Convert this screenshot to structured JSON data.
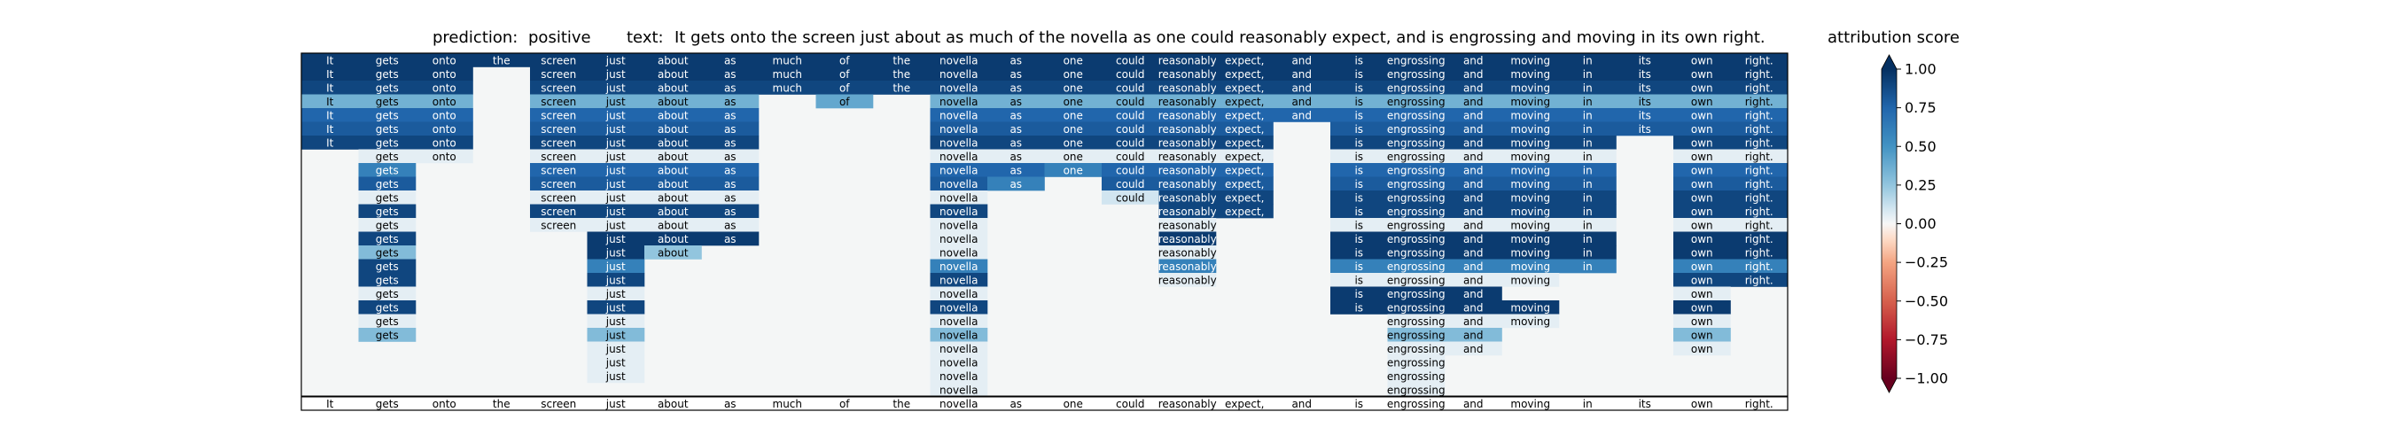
{
  "chart_data": {
    "type": "heatmap",
    "prediction_label": "prediction:",
    "prediction": "positive",
    "text_label": "text:",
    "text": "It gets onto the screen just about as much of the novella as one could reasonably expect, and is engrossing and moving in its own right.",
    "tokens": [
      "It",
      "gets",
      "onto",
      "the",
      "screen",
      "just",
      "about",
      "as",
      "much",
      "of",
      "the",
      "novella",
      "as",
      "one",
      "could",
      "reasonably",
      "expect,",
      "and",
      "is",
      "engrossing",
      "and",
      "moving",
      "in",
      "its",
      "own",
      "right."
    ],
    "colorbar": {
      "title": "attribution score",
      "range": [
        -1.0,
        1.0
      ],
      "ticks": [
        "1.00",
        "0.75",
        "0.50",
        "0.25",
        "0.00",
        "−0.25",
        "−0.50",
        "−0.75",
        "−1.00"
      ],
      "colormap": "RdBu",
      "extend": "both"
    },
    "attribution_rows": [
      [
        0.95,
        0.95,
        0.95,
        0.95,
        0.95,
        0.95,
        0.95,
        0.95,
        0.95,
        0.95,
        0.95,
        0.95,
        0.95,
        0.95,
        0.95,
        0.95,
        0.95,
        0.95,
        0.95,
        0.95,
        0.95,
        0.95,
        0.95,
        0.95,
        0.95,
        0.95
      ],
      [
        0.95,
        0.95,
        0.95,
        null,
        0.95,
        0.95,
        0.95,
        0.95,
        0.95,
        0.95,
        0.95,
        0.95,
        0.95,
        0.95,
        0.95,
        0.95,
        0.95,
        0.95,
        0.95,
        0.95,
        0.95,
        0.95,
        0.95,
        0.95,
        0.95,
        0.95
      ],
      [
        0.9,
        0.9,
        0.9,
        null,
        0.9,
        0.9,
        0.9,
        0.9,
        0.9,
        0.9,
        0.9,
        0.9,
        0.9,
        0.9,
        0.9,
        0.9,
        0.9,
        0.9,
        0.9,
        0.9,
        0.9,
        0.9,
        0.9,
        0.9,
        0.9,
        0.9
      ],
      [
        0.35,
        0.35,
        0.35,
        null,
        0.35,
        0.35,
        0.35,
        0.35,
        null,
        0.4,
        null,
        0.35,
        0.35,
        0.35,
        0.35,
        0.35,
        0.35,
        0.35,
        0.35,
        0.35,
        0.35,
        0.35,
        0.35,
        0.35,
        0.35,
        0.35
      ],
      [
        0.75,
        0.75,
        0.75,
        null,
        0.75,
        0.75,
        0.75,
        0.75,
        null,
        null,
        null,
        0.75,
        0.75,
        0.75,
        0.75,
        0.75,
        0.75,
        0.75,
        0.75,
        0.75,
        0.75,
        0.75,
        0.75,
        0.75,
        0.75,
        0.75
      ],
      [
        0.8,
        0.8,
        0.8,
        null,
        0.8,
        0.8,
        0.8,
        0.8,
        null,
        null,
        null,
        0.8,
        0.8,
        0.8,
        0.8,
        0.8,
        0.8,
        null,
        0.8,
        0.8,
        0.8,
        0.8,
        0.8,
        0.8,
        0.8,
        0.8
      ],
      [
        0.9,
        0.9,
        0.9,
        null,
        0.9,
        0.9,
        0.9,
        0.9,
        null,
        null,
        null,
        0.9,
        0.9,
        0.9,
        0.9,
        0.9,
        0.9,
        null,
        0.9,
        0.9,
        0.9,
        0.9,
        0.9,
        null,
        0.9,
        0.9
      ],
      [
        null,
        0.05,
        0.05,
        null,
        0.05,
        0.05,
        0.05,
        0.05,
        null,
        null,
        null,
        0.05,
        0.05,
        0.05,
        0.05,
        0.05,
        0.05,
        null,
        0.05,
        0.05,
        0.05,
        0.05,
        0.05,
        null,
        0.05,
        0.05
      ],
      [
        null,
        0.6,
        null,
        null,
        0.75,
        0.75,
        0.75,
        0.75,
        null,
        null,
        null,
        0.75,
        0.75,
        0.6,
        0.75,
        0.75,
        0.75,
        null,
        0.75,
        0.75,
        0.75,
        0.75,
        0.75,
        null,
        0.75,
        0.75
      ],
      [
        null,
        0.8,
        null,
        null,
        0.8,
        0.8,
        0.8,
        0.8,
        null,
        null,
        null,
        0.8,
        0.6,
        null,
        0.8,
        0.8,
        0.8,
        null,
        0.8,
        0.8,
        0.8,
        0.8,
        0.8,
        null,
        0.8,
        0.8
      ],
      [
        null,
        0.05,
        null,
        null,
        0.05,
        0.05,
        0.05,
        0.05,
        null,
        null,
        null,
        0.05,
        null,
        null,
        0.1,
        0.9,
        0.9,
        null,
        0.9,
        0.9,
        0.9,
        0.9,
        0.9,
        null,
        0.9,
        0.9
      ],
      [
        null,
        0.9,
        null,
        null,
        0.9,
        0.9,
        0.9,
        0.9,
        null,
        null,
        null,
        0.9,
        null,
        null,
        null,
        0.9,
        0.9,
        null,
        0.9,
        0.9,
        0.9,
        0.9,
        0.9,
        null,
        0.9,
        0.9
      ],
      [
        null,
        0.05,
        null,
        null,
        0.05,
        0.05,
        0.05,
        0.05,
        null,
        null,
        null,
        0.05,
        null,
        null,
        null,
        0.05,
        null,
        null,
        0.05,
        0.05,
        0.05,
        0.05,
        0.05,
        null,
        0.05,
        0.05
      ],
      [
        null,
        0.9,
        null,
        null,
        null,
        0.95,
        0.95,
        0.95,
        null,
        null,
        null,
        0.05,
        null,
        null,
        null,
        0.95,
        null,
        null,
        0.95,
        0.95,
        0.95,
        0.95,
        0.95,
        null,
        0.95,
        0.95
      ],
      [
        null,
        0.3,
        null,
        null,
        null,
        0.95,
        0.25,
        null,
        null,
        null,
        null,
        0.05,
        null,
        null,
        null,
        0.05,
        null,
        null,
        0.95,
        0.95,
        0.95,
        0.95,
        0.95,
        null,
        0.95,
        0.95
      ],
      [
        null,
        0.9,
        null,
        null,
        null,
        0.6,
        null,
        null,
        null,
        null,
        null,
        0.6,
        null,
        null,
        null,
        0.6,
        null,
        null,
        0.6,
        0.6,
        0.6,
        0.6,
        0.6,
        null,
        0.6,
        0.6
      ],
      [
        null,
        0.9,
        null,
        null,
        null,
        0.9,
        null,
        null,
        null,
        null,
        null,
        0.9,
        null,
        null,
        null,
        0.05,
        null,
        null,
        0.05,
        0.05,
        0.05,
        0.05,
        null,
        null,
        0.9,
        0.9
      ],
      [
        null,
        0.05,
        null,
        null,
        null,
        0.05,
        null,
        null,
        null,
        null,
        null,
        0.05,
        null,
        null,
        null,
        null,
        null,
        null,
        0.95,
        0.95,
        0.95,
        null,
        null,
        null,
        0.05,
        null
      ],
      [
        null,
        0.9,
        null,
        null,
        null,
        0.9,
        null,
        null,
        null,
        null,
        null,
        0.9,
        null,
        null,
        null,
        null,
        null,
        null,
        0.95,
        0.95,
        0.95,
        0.95,
        null,
        null,
        0.95,
        null
      ],
      [
        null,
        0.05,
        null,
        null,
        null,
        0.05,
        null,
        null,
        null,
        null,
        null,
        0.05,
        null,
        null,
        null,
        null,
        null,
        null,
        null,
        0.05,
        0.05,
        0.05,
        null,
        null,
        0.05,
        null
      ],
      [
        null,
        0.3,
        null,
        null,
        null,
        0.3,
        null,
        null,
        null,
        null,
        null,
        0.3,
        null,
        null,
        null,
        null,
        null,
        null,
        null,
        0.3,
        0.3,
        null,
        null,
        null,
        0.3,
        null
      ],
      [
        null,
        null,
        null,
        null,
        null,
        0.05,
        null,
        null,
        null,
        null,
        null,
        0.05,
        null,
        null,
        null,
        null,
        null,
        null,
        null,
        0.05,
        0.05,
        null,
        null,
        null,
        0.05,
        null
      ],
      [
        null,
        null,
        null,
        null,
        null,
        0.05,
        null,
        null,
        null,
        null,
        null,
        0.05,
        null,
        null,
        null,
        null,
        null,
        null,
        null,
        0.05,
        null,
        null,
        null,
        null,
        null,
        null
      ],
      [
        null,
        null,
        null,
        null,
        null,
        0.05,
        null,
        null,
        null,
        null,
        null,
        0.05,
        null,
        null,
        null,
        null,
        null,
        null,
        null,
        0.05,
        null,
        null,
        null,
        null,
        null,
        null
      ],
      [
        null,
        null,
        null,
        null,
        null,
        null,
        null,
        null,
        null,
        null,
        null,
        0.05,
        null,
        null,
        null,
        null,
        null,
        null,
        null,
        0.05,
        null,
        null,
        null,
        null,
        null,
        null
      ]
    ]
  }
}
